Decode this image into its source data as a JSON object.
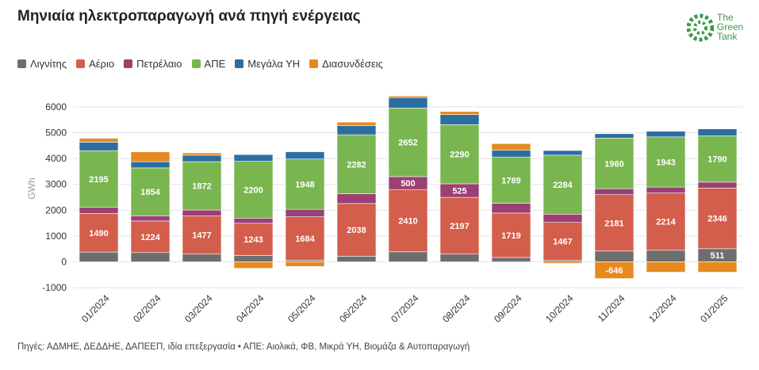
{
  "title": "Μηνιαία ηλεκτροπαραγωγή ανά πηγή ενέργειας",
  "logo": {
    "line1": "The",
    "line2": "Green",
    "line3": "Tank"
  },
  "footer": "Πηγές: ΑΔΜΗΕ, ΔΕΔΔΗΕ, ΔΑΠΕΕΠ, ιδία επεξεργασία • ΑΠΕ: Αιολικά, ΦΒ, Μικρά ΥΗ, Βιομάζα & Αυτοπαραγωγή",
  "colors": {
    "lignite": "#6e6e6e",
    "gas": "#d35e4b",
    "oil": "#9c3f74",
    "res": "#7ab650",
    "hydro": "#2c6ea0",
    "interconnections": "#e68a1f"
  },
  "chart_data": {
    "type": "bar",
    "stacked": true,
    "ylabel": "GWh",
    "ylim": [
      -1000,
      6500
    ],
    "yticks": [
      -1000,
      0,
      1000,
      2000,
      3000,
      4000,
      5000,
      6000
    ],
    "grid": true,
    "legend_position": "top-left",
    "categories": [
      "01/2024",
      "02/2024",
      "03/2024",
      "04/2024",
      "05/2024",
      "06/2024",
      "07/2024",
      "08/2024",
      "09/2024",
      "10/2024",
      "11/2024",
      "12/2024",
      "01/2025"
    ],
    "series": [
      {
        "key": "lignite",
        "name": "Λιγνίτης",
        "values": [
          380,
          360,
          300,
          250,
          60,
          220,
          390,
          300,
          170,
          60,
          420,
          450,
          511
        ],
        "labels": [
          "",
          "",
          "",
          "",
          "",
          "",
          "",
          "",
          "",
          "",
          "",
          "",
          "511"
        ]
      },
      {
        "key": "gas",
        "name": "Αέριο",
        "values": [
          1490,
          1224,
          1477,
          1243,
          1684,
          2038,
          2410,
          2197,
          1719,
          1467,
          2181,
          2214,
          2346
        ],
        "labels": [
          "1490",
          "1224",
          "1477",
          "1243",
          "1684",
          "2038",
          "2410",
          "2197",
          "1719",
          "1467",
          "2181",
          "2214",
          "2346"
        ]
      },
      {
        "key": "oil",
        "name": "Πετρέλαιο",
        "values": [
          240,
          200,
          230,
          200,
          290,
          380,
          500,
          525,
          380,
          320,
          230,
          230,
          230
        ],
        "labels": [
          "",
          "",
          "",
          "",
          "",
          "",
          "500",
          "525",
          "",
          "",
          "",
          "",
          ""
        ]
      },
      {
        "key": "res",
        "name": "ΑΠΕ",
        "values": [
          2195,
          1854,
          1872,
          2200,
          1948,
          2282,
          2652,
          2290,
          1789,
          2284,
          1960,
          1943,
          1790
        ],
        "labels": [
          "2195",
          "1854",
          "1872",
          "2200",
          "1948",
          "2282",
          "2652",
          "2290",
          "1789",
          "2284",
          "1960",
          "1943",
          "1790"
        ]
      },
      {
        "key": "hydro",
        "name": "Μεγάλα ΥΗ",
        "values": [
          330,
          240,
          250,
          260,
          280,
          360,
          410,
          390,
          260,
          180,
          170,
          220,
          270
        ],
        "labels": [
          "",
          "",
          "",
          "",
          "",
          "",
          "",
          "",
          "",
          "",
          "",
          "",
          ""
        ]
      },
      {
        "key": "interconnections",
        "name": "Διασυνδέσεις",
        "values": [
          150,
          380,
          90,
          -250,
          -180,
          130,
          60,
          120,
          260,
          -60,
          -646,
          -400,
          -400
        ],
        "labels": [
          "",
          "",
          "",
          "",
          "",
          "",
          "",
          "",
          "",
          "",
          "-646",
          "",
          ""
        ]
      }
    ]
  }
}
